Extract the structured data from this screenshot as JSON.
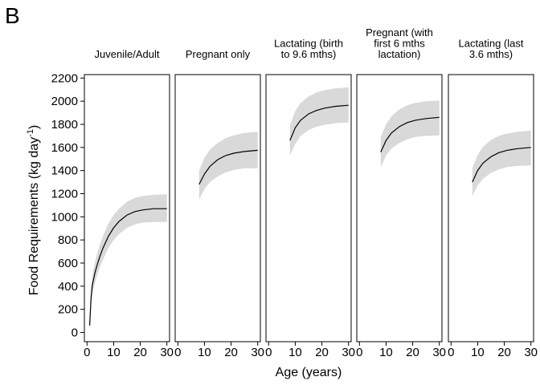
{
  "figure": {
    "panel_letter": "B"
  },
  "chart_data": {
    "type": "line",
    "xlabel": "Age (years)",
    "ylabel": "Food Requirements (kg day",
    "ylabel_superscript": "-1",
    "ylabel_suffix": ")",
    "ylim": [
      -80,
      2230
    ],
    "xlim": [
      -1,
      31
    ],
    "y_ticks": [
      0,
      200,
      400,
      600,
      800,
      1000,
      1200,
      1400,
      1600,
      1800,
      2000,
      2200
    ],
    "x_ticks": [
      0,
      10,
      20,
      30
    ],
    "grid": false,
    "band_color": "#d9d9d9",
    "line_color": "#000000",
    "panels": [
      {
        "title_lines": [
          "Juvenile/Adult"
        ],
        "x": [
          1,
          1.5,
          2,
          3,
          4,
          5,
          6,
          8,
          10,
          12,
          15,
          18,
          21,
          25,
          30
        ],
        "mean": [
          60,
          300,
          410,
          520,
          600,
          670,
          730,
          830,
          905,
          960,
          1015,
          1045,
          1060,
          1070,
          1070
        ],
        "lower": [
          0,
          220,
          330,
          430,
          510,
          575,
          630,
          730,
          800,
          850,
          905,
          935,
          950,
          955,
          955
        ],
        "upper": [
          120,
          380,
          490,
          610,
          700,
          770,
          835,
          940,
          1015,
          1070,
          1130,
          1165,
          1180,
          1190,
          1195
        ]
      },
      {
        "title_lines": [
          "Pregnant only"
        ],
        "x": [
          8,
          10,
          12,
          15,
          18,
          21,
          25,
          30
        ],
        "mean": [
          1280,
          1370,
          1435,
          1495,
          1530,
          1550,
          1565,
          1575
        ],
        "lower": [
          1150,
          1240,
          1300,
          1350,
          1385,
          1405,
          1420,
          1420
        ],
        "upper": [
          1400,
          1510,
          1580,
          1640,
          1680,
          1705,
          1725,
          1735
        ]
      },
      {
        "title_lines": [
          "Lactating (birth",
          "to 9.6 mths)"
        ],
        "x": [
          8,
          10,
          12,
          15,
          18,
          21,
          25,
          30
        ],
        "mean": [
          1660,
          1770,
          1835,
          1890,
          1920,
          1940,
          1955,
          1965
        ],
        "lower": [
          1530,
          1630,
          1700,
          1750,
          1780,
          1795,
          1810,
          1815
        ],
        "upper": [
          1790,
          1915,
          1985,
          2040,
          2075,
          2095,
          2110,
          2120
        ]
      },
      {
        "title_lines": [
          "Pregnant (with",
          "first 6 mths",
          "lactation)"
        ],
        "x": [
          8,
          10,
          12,
          15,
          18,
          21,
          25,
          30
        ],
        "mean": [
          1560,
          1660,
          1725,
          1780,
          1815,
          1835,
          1850,
          1860
        ],
        "lower": [
          1430,
          1530,
          1590,
          1640,
          1670,
          1690,
          1700,
          1705
        ],
        "upper": [
          1690,
          1800,
          1870,
          1930,
          1965,
          1985,
          2000,
          2005
        ]
      },
      {
        "title_lines": [
          "Lactating (last",
          "3.6 mths)"
        ],
        "x": [
          8,
          10,
          12,
          15,
          18,
          21,
          25,
          30
        ],
        "mean": [
          1300,
          1400,
          1465,
          1520,
          1555,
          1575,
          1590,
          1600
        ],
        "lower": [
          1180,
          1270,
          1330,
          1380,
          1410,
          1430,
          1440,
          1445
        ],
        "upper": [
          1420,
          1535,
          1605,
          1665,
          1700,
          1720,
          1735,
          1745
        ]
      }
    ]
  }
}
